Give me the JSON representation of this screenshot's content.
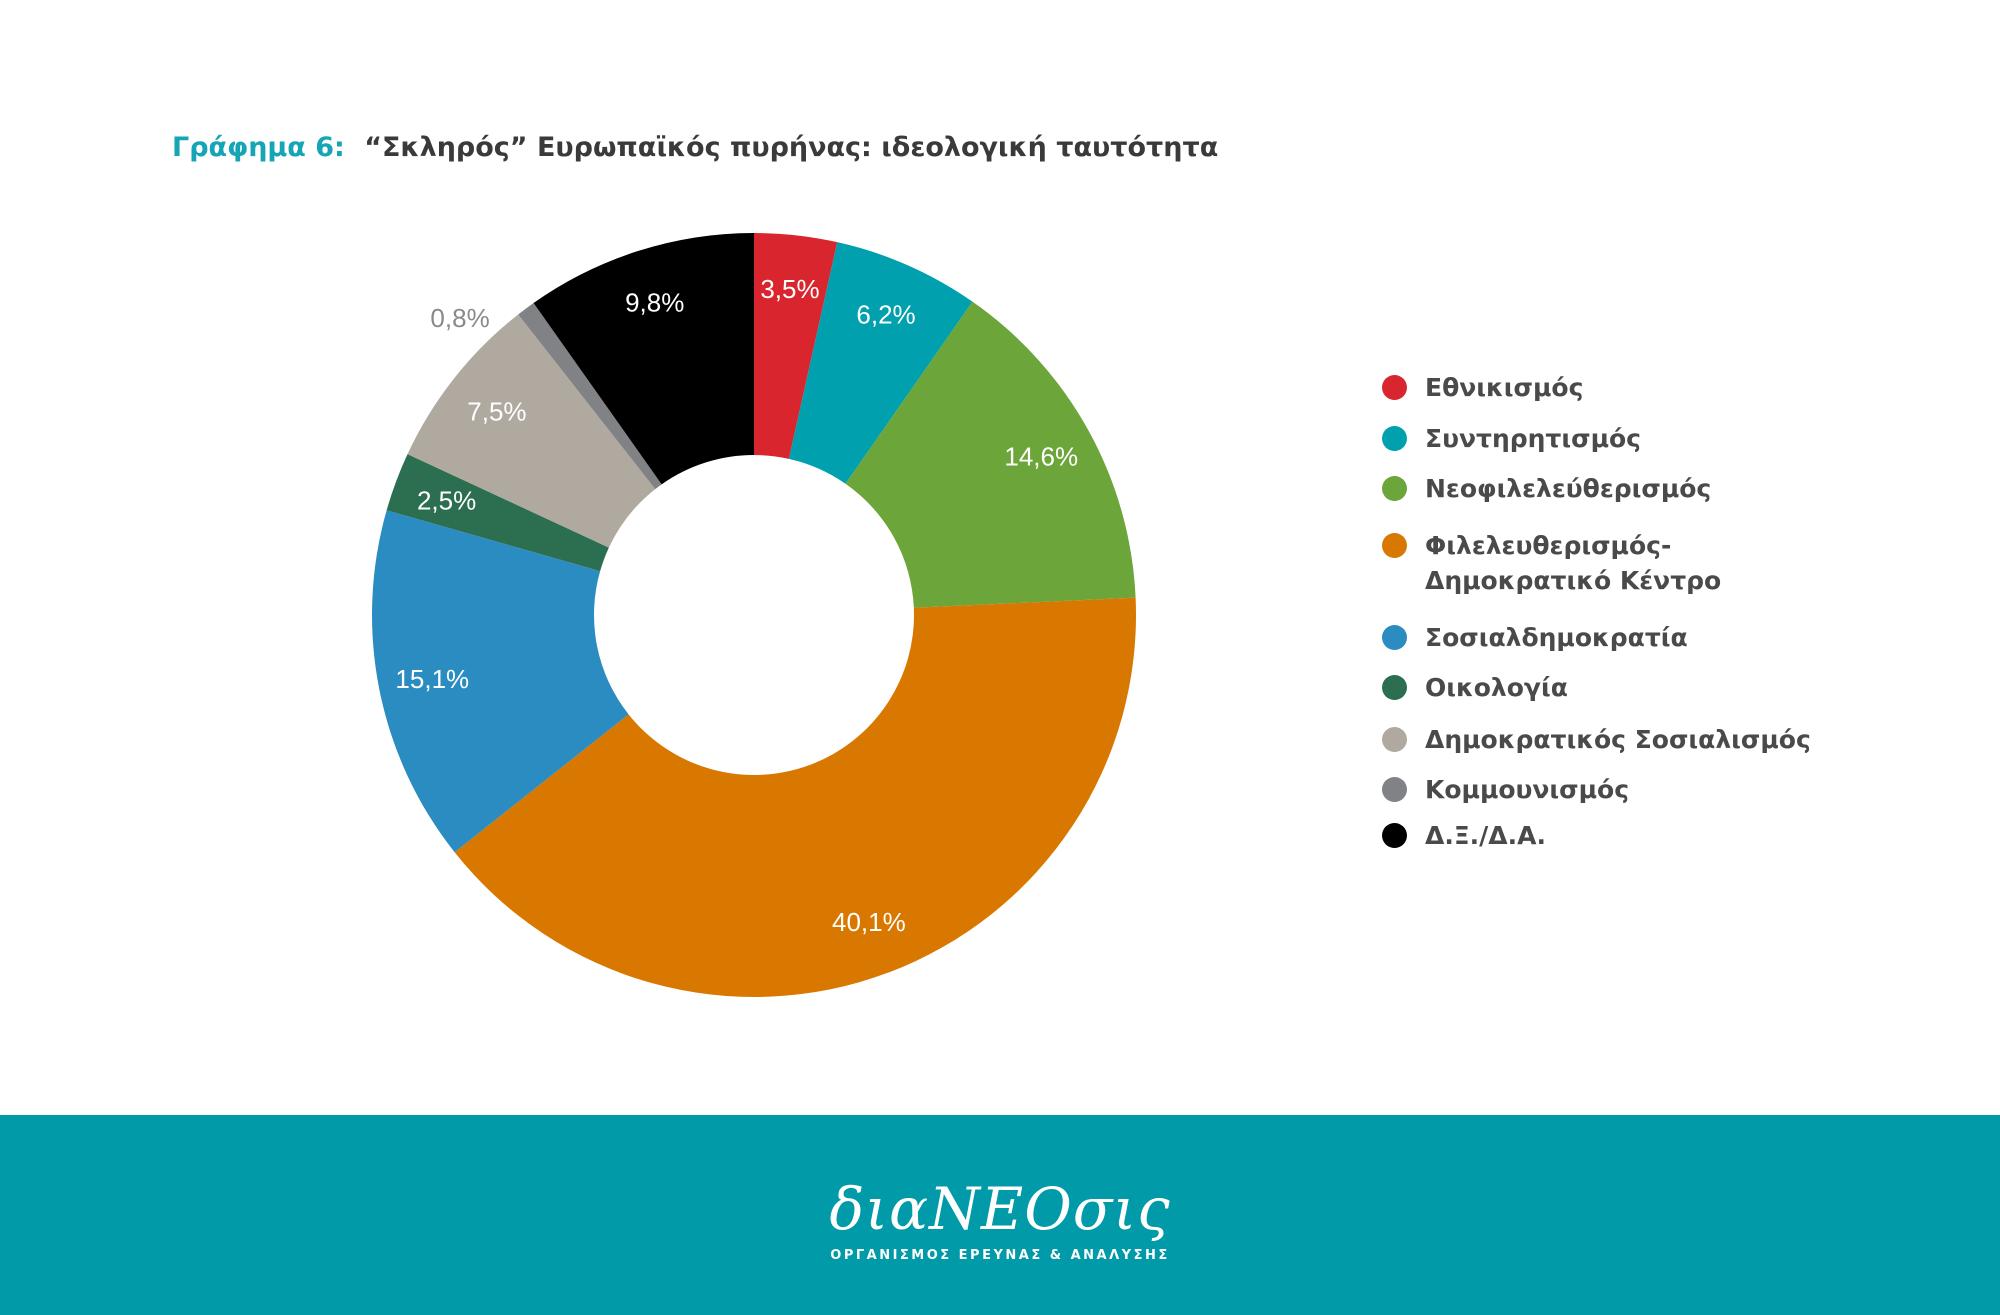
{
  "title": {
    "prefix": "Γράφημα 6:",
    "text": "“Σκληρός” Ευρωπαϊκός πυρήνας: ιδεολογική ταυτότητα"
  },
  "chart_data": {
    "type": "pie",
    "donut": true,
    "title": "“Σκληρός” Ευρωπαϊκός πυρήνας: ιδεολογική ταυτότητα",
    "legend_position": "right",
    "slices": [
      {
        "label": "Εθνικισμός",
        "value": 3.5,
        "display": "3,5%",
        "color": "#d9262e",
        "label_color": "#ffffff"
      },
      {
        "label": "Συντηρητισμός",
        "value": 6.2,
        "display": "6,2%",
        "color": "#00a0ae",
        "label_color": "#ffffff"
      },
      {
        "label": "Νεοφιλελεύθερισμός",
        "value": 14.6,
        "display": "14,6%",
        "color": "#6ca53a",
        "label_color": "#ffffff"
      },
      {
        "label": "Φιλελευθερισμός-\nΔημοκρατικό Κέντρο",
        "value": 40.1,
        "display": "40,1%",
        "color": "#d97800",
        "label_color": "#ffffff"
      },
      {
        "label": "Σοσιαλδημοκρατία",
        "value": 15.1,
        "display": "15,1%",
        "color": "#2b8cc2",
        "label_color": "#ffffff"
      },
      {
        "label": "Οικολογία",
        "value": 2.5,
        "display": "2,5%",
        "color": "#2c6e50",
        "label_color": "#ffffff"
      },
      {
        "label": "Δημοκρατικός Σοσιαλισμός",
        "value": 7.5,
        "display": "7,5%",
        "color": "#b0a9a0",
        "label_color": "#ffffff"
      },
      {
        "label": "Κομμουνισμός",
        "value": 0.8,
        "display": "0,8%",
        "color": "#808285",
        "label_color": "#8a8a8a",
        "outside": true
      },
      {
        "label": "Δ.Ξ./Δ.Α.",
        "value": 9.8,
        "display": "9,8%",
        "color": "#000000",
        "label_color": "#ffffff"
      }
    ]
  },
  "footer": {
    "logo": "διαΝΕΟσις",
    "tagline": "ΟΡΓΑΝΙΣΜΟΣ ΕΡΕΥΝΑΣ & ΑΝΑΛΥΣΗΣ",
    "background": "#009aa8"
  }
}
